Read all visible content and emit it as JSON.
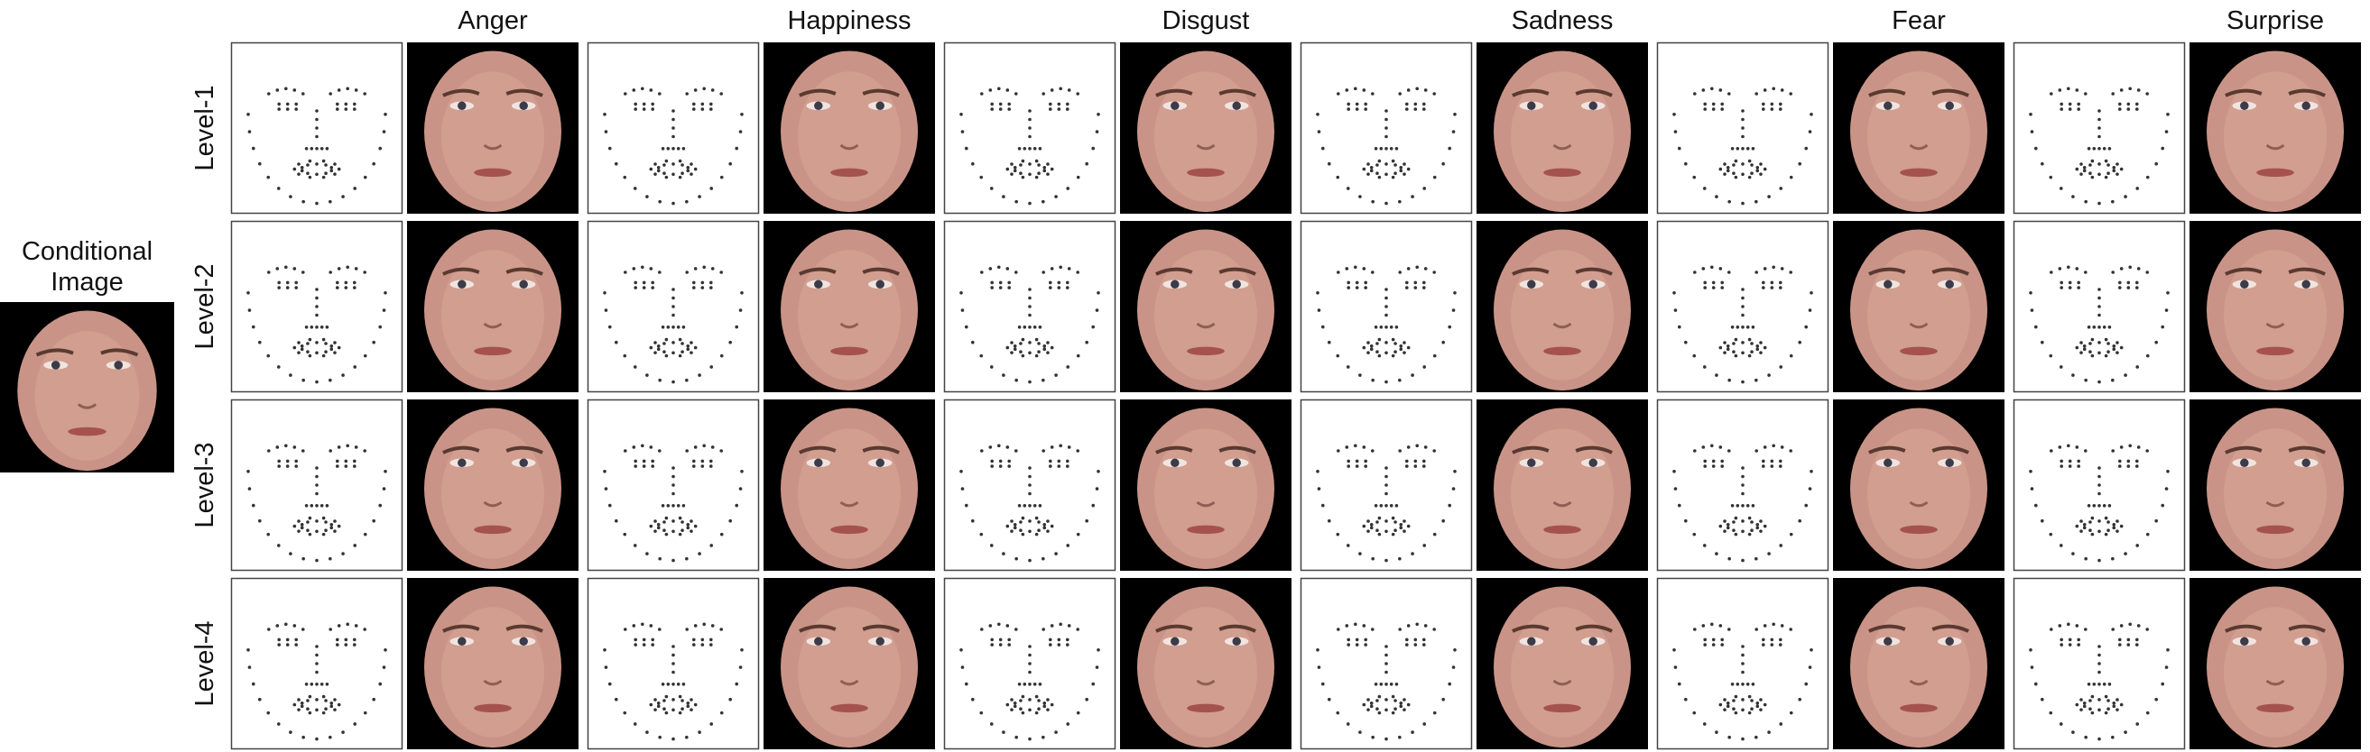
{
  "conditional_image": {
    "label": "Conditional Image"
  },
  "columns": [
    "Anger",
    "Happiness",
    "Disgust",
    "Sadness",
    "Fear",
    "Surprise"
  ],
  "rows": [
    "Level-1",
    "Level-2",
    "Level-3",
    "Level-4"
  ]
}
